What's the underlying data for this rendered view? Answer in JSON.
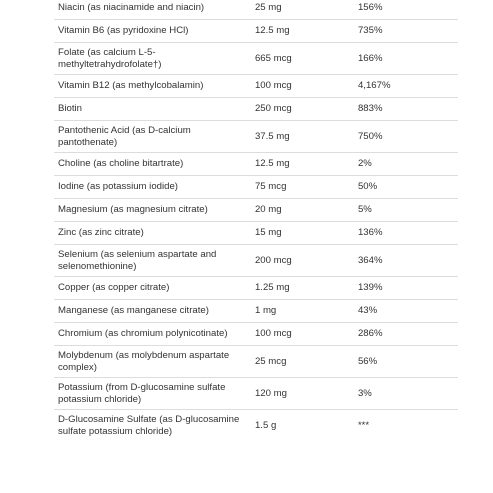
{
  "supplement_facts": {
    "rows": [
      {
        "name": "Niacin (as niacinamide and niacin)",
        "amount": "25 mg",
        "daily_value": "156%"
      },
      {
        "name": "Vitamin B6 (as pyridoxine HCl)",
        "amount": "12.5 mg",
        "daily_value": "735%"
      },
      {
        "name": "Folate (as calcium L-5-methyltetrahydrofolate†)",
        "amount": "665 mcg",
        "daily_value": "166%"
      },
      {
        "name": "Vitamin B12 (as methylcobalamin)",
        "amount": "100 mcg",
        "daily_value": "4,167%"
      },
      {
        "name": "Biotin",
        "amount": "250 mcg",
        "daily_value": "883%"
      },
      {
        "name": "Pantothenic Acid (as D-calcium pantothenate)",
        "amount": "37.5 mg",
        "daily_value": "750%"
      },
      {
        "name": "Choline (as choline bitartrate)",
        "amount": "12.5 mg",
        "daily_value": "2%"
      },
      {
        "name": "Iodine (as potassium iodide)",
        "amount": "75 mcg",
        "daily_value": "50%"
      },
      {
        "name": "Magnesium (as magnesium citrate)",
        "amount": "20 mg",
        "daily_value": "5%"
      },
      {
        "name": "Zinc (as zinc citrate)",
        "amount": "15 mg",
        "daily_value": "136%"
      },
      {
        "name": "Selenium (as selenium aspartate and selenomethionine)",
        "amount": "200 mcg",
        "daily_value": "364%"
      },
      {
        "name": "Copper (as copper citrate)",
        "amount": "1.25 mg",
        "daily_value": "139%"
      },
      {
        "name": "Manganese (as manganese citrate)",
        "amount": "1 mg",
        "daily_value": "43%"
      },
      {
        "name": "Chromium (as chromium polynicotinate)",
        "amount": "100 mcg",
        "daily_value": "286%"
      },
      {
        "name": "Molybdenum (as molybdenum aspartate complex)",
        "amount": "25 mcg",
        "daily_value": "56%"
      },
      {
        "name": "Potassium (from D-glucosamine sulfate potassium chloride)",
        "amount": "120 mg",
        "daily_value": "3%"
      },
      {
        "name": "D-Glucosamine Sulfate (as D-glucosamine sulfate potassium chloride)",
        "amount": "1.5 g",
        "daily_value": "***"
      }
    ]
  }
}
